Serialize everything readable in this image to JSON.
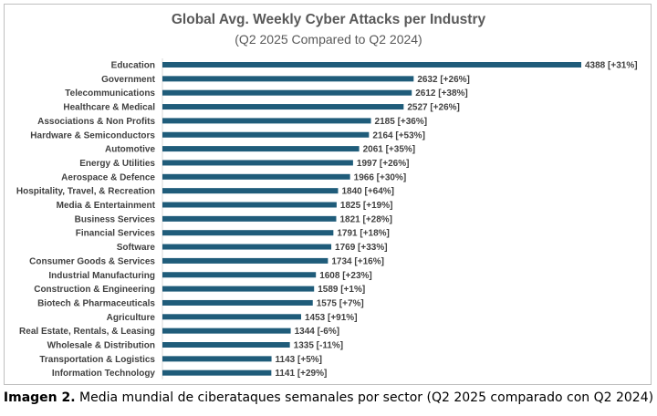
{
  "chart_data": {
    "type": "bar",
    "orientation": "horizontal",
    "title": "Global Avg. Weekly Cyber Attacks per Industry",
    "subtitle": "(Q2 2025 Compared to Q2 2024)",
    "bar_color": "#1f5c7a",
    "categories": [
      "Education",
      "Government",
      "Telecommunications",
      "Healthcare & Medical",
      "Associations & Non Profits",
      "Hardware & Semiconductors",
      "Automotive",
      "Energy & Utilities",
      "Aerospace & Defence",
      "Hospitality, Travel, & Recreation",
      "Media & Entertainment",
      "Business Services",
      "Financial Services",
      "Software",
      "Consumer Goods & Services",
      "Industrial Manufacturing",
      "Construction & Engineering",
      "Biotech & Pharmaceuticals",
      "Agriculture",
      "Real Estate, Rentals, & Leasing",
      "Wholesale & Distribution",
      "Transportation & Logistics",
      "Information Technology"
    ],
    "values": [
      4388,
      2632,
      2612,
      2527,
      2185,
      2164,
      2061,
      1997,
      1966,
      1840,
      1825,
      1821,
      1791,
      1769,
      1734,
      1608,
      1589,
      1575,
      1453,
      1344,
      1335,
      1143,
      1141
    ],
    "data_labels": [
      "4388 [+31%]",
      "2632 [+26%]",
      "2612 [+38%]",
      "2527 [+26%]",
      "2185 [+36%]",
      "2164 [+53%]",
      "2061 [+35%]",
      "1997 [+26%]",
      "1966 [+30%]",
      "1840 [+64%]",
      "1825 [+19%]",
      "1821 [+28%]",
      "1791 [+18%]",
      "1769 [+33%]",
      "1734 [+16%]",
      "1608 [+23%]",
      "1589 [+1%]",
      "1575 [+7%]",
      "1453 [+91%]",
      "1344 [-6%]",
      "1335 [-11%]",
      "1143 [+5%]",
      "1141 [+29%]"
    ],
    "xlim": [
      0,
      4388
    ],
    "grid": false,
    "legend": "none"
  },
  "caption": {
    "prefix": "Imagen 2.",
    "text": " Media mundial de ciberataques semanales por sector (Q2 2025 comparado con Q2 2024)"
  }
}
